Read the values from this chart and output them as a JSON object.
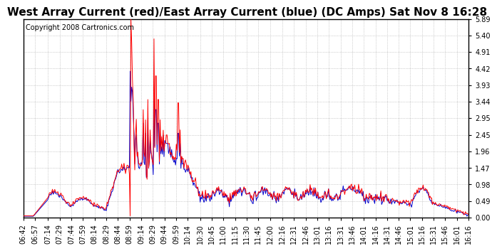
{
  "title": "West Array Current (red)/East Array Current (blue) (DC Amps) Sat Nov 8 16:28",
  "copyright": "Copyright 2008 Cartronics.com",
  "background_color": "#ffffff",
  "plot_bg_color": "#ffffff",
  "grid_color": "#aaaaaa",
  "yticks": [
    0.0,
    0.49,
    0.98,
    1.47,
    1.96,
    2.45,
    2.95,
    3.44,
    3.93,
    4.42,
    4.91,
    5.4,
    5.89
  ],
  "ymin": 0.0,
  "ymax": 5.89,
  "x_labels": [
    "06:42",
    "06:57",
    "07:14",
    "07:29",
    "07:44",
    "07:59",
    "08:14",
    "08:29",
    "08:44",
    "08:59",
    "09:14",
    "09:29",
    "09:44",
    "09:59",
    "10:14",
    "10:30",
    "10:45",
    "11:00",
    "11:15",
    "11:30",
    "11:45",
    "12:00",
    "12:16",
    "12:31",
    "12:46",
    "13:01",
    "13:16",
    "13:31",
    "13:46",
    "14:01",
    "14:16",
    "14:31",
    "14:46",
    "15:01",
    "15:16",
    "15:31",
    "15:46",
    "16:01",
    "16:16"
  ],
  "red_color": "#ff0000",
  "blue_color": "#0000cc",
  "title_fontsize": 11,
  "tick_fontsize": 7,
  "copyright_fontsize": 7
}
